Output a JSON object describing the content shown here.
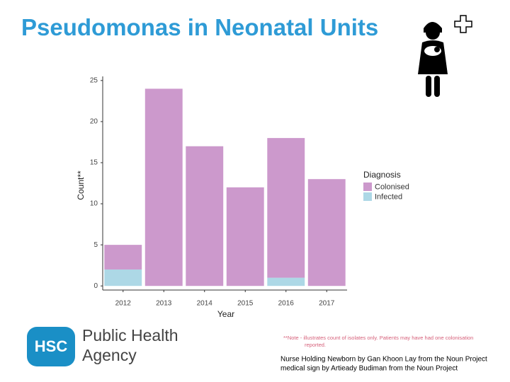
{
  "title": "Pseudomonas in Neonatal Units",
  "chart_data": {
    "type": "bar",
    "stacked": true,
    "categories": [
      "2012",
      "2013",
      "2014",
      "2015",
      "2016",
      "2017"
    ],
    "series": [
      {
        "name": "Colonised",
        "color": "#cc99cc",
        "values": [
          3,
          24,
          17,
          12,
          17,
          13
        ]
      },
      {
        "name": "Infected",
        "color": "#add8e6",
        "values": [
          2,
          0,
          0,
          0,
          1,
          0
        ]
      }
    ],
    "ylim": [
      -0.5,
      25.5
    ],
    "yticks": [
      0,
      5,
      10,
      15,
      20,
      25
    ],
    "x_label": "Year",
    "y_label": "Count**",
    "legend_title": "Diagnosis",
    "legend": "right"
  },
  "logo": {
    "badge": "HSC",
    "line1": "Public Health",
    "line2": "Agency"
  },
  "note": [
    "**Note - illustrates count of isolates only. Patients may have had one colonisation",
    "reported."
  ],
  "credits": [
    "Nurse Holding Newborn by Gan Khoon Lay from the Noun Project",
    "medical sign by Artieady Budiman from the Noun Project"
  ]
}
